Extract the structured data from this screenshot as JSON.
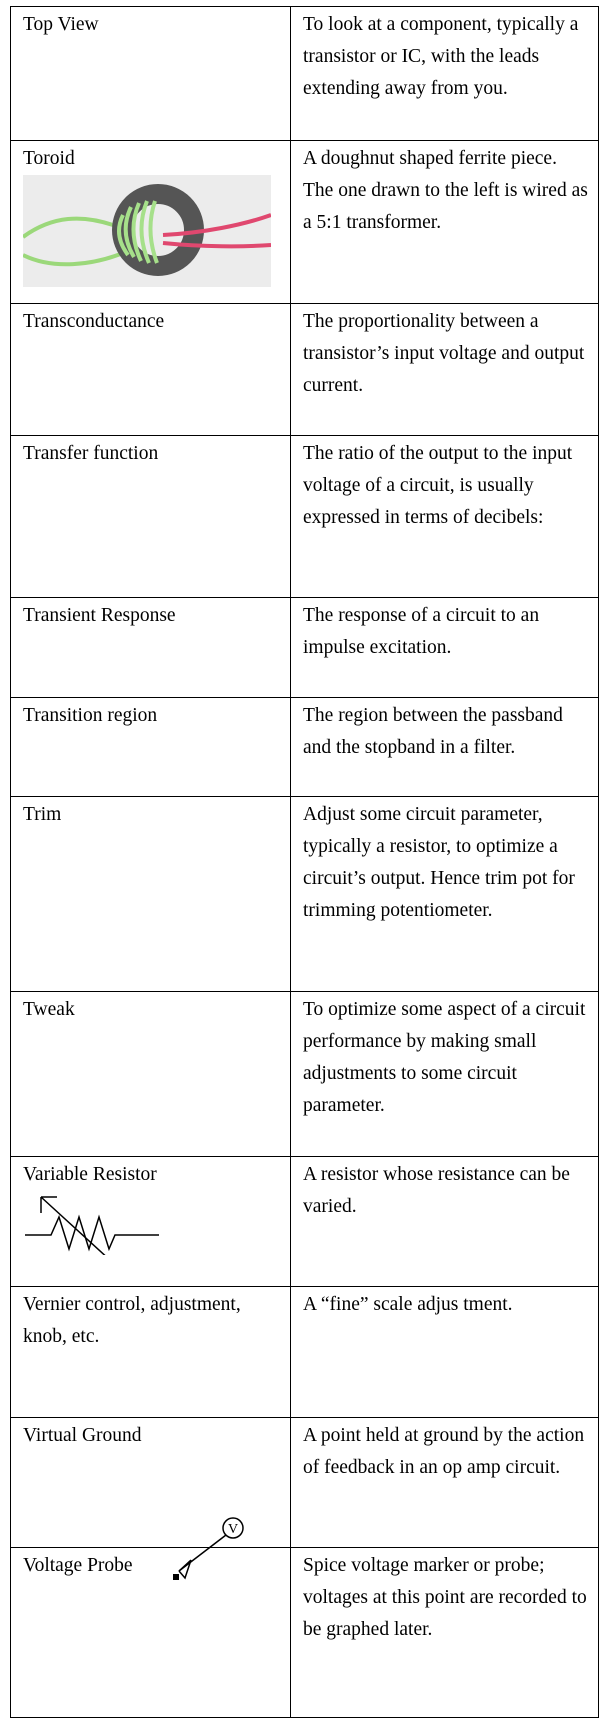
{
  "table": {
    "rows": [
      [
        "Top View",
        "To look at a component, typically a transistor or IC, with the leads extending away from you."
      ],
      [
        "Toroid",
        "A doughnut shaped ferrite piece.  The one drawn to the left is wired as a 5:1 transformer."
      ],
      [
        "Transconductance",
        "The proportionality between a transistor’s input voltage and output current."
      ],
      [
        "Transfer function",
        "The ratio of the output to the input voltage of a circuit, is usually expressed in terms of decibels:"
      ],
      [
        "Transient Response",
        "The response of a circuit to an impulse excitation."
      ],
      [
        "Transition region",
        "The region between the passband and the stopband in a filter."
      ],
      [
        "Trim",
        "Adjust some circuit parameter, typically a resistor, to optimize a circuit’s output.  Hence trim pot for trimming potentiometer."
      ],
      [
        "Tweak",
        "To optimize some aspect of a circuit performance by making small adjustments to some circuit parameter."
      ],
      [
        "Variable Resistor",
        "A resistor whose resistance can be varied."
      ],
      [
        "Vernier control, adjustment, knob, etc.",
        "A “fine” scale adjus tment."
      ],
      [
        "Virtual Ground",
        "A point held at ground by the action of feedback in an op amp circuit."
      ],
      [
        "Voltage Probe",
        "Spice voltage marker or probe; voltages at this point are recorded to be graphed later."
      ]
    ]
  }
}
